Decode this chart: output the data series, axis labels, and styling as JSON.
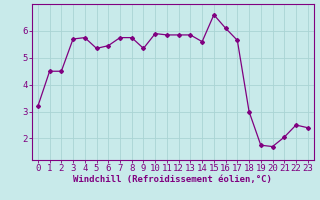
{
  "x": [
    0,
    1,
    2,
    3,
    4,
    5,
    6,
    7,
    8,
    9,
    10,
    11,
    12,
    13,
    14,
    15,
    16,
    17,
    18,
    19,
    20,
    21,
    22,
    23
  ],
  "y": [
    3.2,
    4.5,
    4.5,
    5.7,
    5.75,
    5.35,
    5.45,
    5.75,
    5.75,
    5.35,
    5.9,
    5.85,
    5.85,
    5.85,
    5.6,
    6.6,
    6.1,
    5.65,
    3.0,
    1.75,
    1.7,
    2.05,
    2.5,
    2.4
  ],
  "line_color": "#800080",
  "bg_color": "#c8eaea",
  "grid_color": "#aad4d4",
  "xlabel": "Windchill (Refroidissement éolien,°C)",
  "ylim": [
    1.2,
    7.0
  ],
  "xlim": [
    -0.5,
    23.5
  ],
  "yticks": [
    2,
    3,
    4,
    5,
    6
  ],
  "xticks": [
    0,
    1,
    2,
    3,
    4,
    5,
    6,
    7,
    8,
    9,
    10,
    11,
    12,
    13,
    14,
    15,
    16,
    17,
    18,
    19,
    20,
    21,
    22,
    23
  ],
  "tick_color": "#800080",
  "label_color": "#800080",
  "font_size_xlabel": 6.5,
  "font_size_ticks": 6.5,
  "marker": "D",
  "marker_size": 2.0,
  "line_width": 0.9
}
